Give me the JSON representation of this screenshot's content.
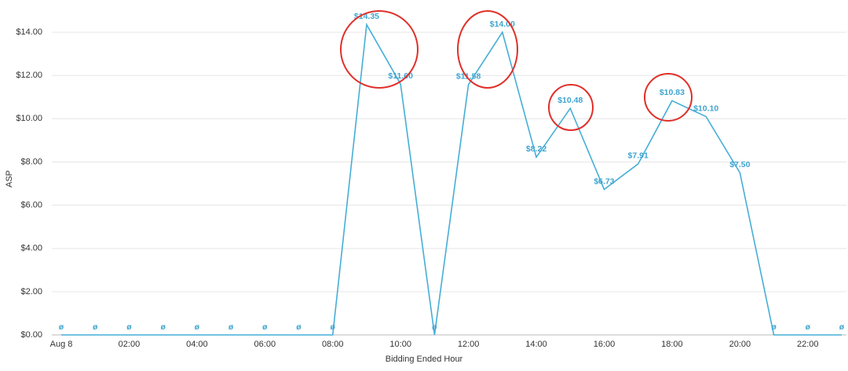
{
  "chart_data": {
    "type": "line",
    "x_label": "Bidding Ended Hour",
    "y_label": "ASP",
    "categories": [
      "Aug 8",
      null,
      "02:00",
      null,
      "04:00",
      null,
      "06:00",
      null,
      "08:00",
      null,
      "10:00",
      null,
      "12:00",
      null,
      "14:00",
      null,
      "16:00",
      null,
      "18:00",
      null,
      "20:00",
      null,
      "22:00",
      null
    ],
    "series": [
      {
        "name": "ASP",
        "color": "#45aed6",
        "values": [
          0,
          0,
          0,
          0,
          0,
          0,
          0,
          0,
          0,
          14.35,
          11.6,
          0,
          11.58,
          14.0,
          8.22,
          10.48,
          6.73,
          7.91,
          10.83,
          10.1,
          7.5,
          0,
          0,
          0
        ],
        "value_labels": [
          "ø",
          "ø",
          "ø",
          "ø",
          "ø",
          "ø",
          "ø",
          "ø",
          "ø",
          "$14.35",
          "$11.60",
          "ø",
          "$11.58",
          "$14.00",
          "$8.22",
          "$10.48",
          "$6.73",
          "$7.91",
          "$10.83",
          "$10.10",
          "$7.50",
          "ø",
          "ø",
          "ø"
        ]
      }
    ],
    "ylim": [
      0,
      15
    ],
    "yticks": [
      {
        "value": 0,
        "label": "$0.00"
      },
      {
        "value": 2,
        "label": "$2.00"
      },
      {
        "value": 4,
        "label": "$4.00"
      },
      {
        "value": 6,
        "label": "$6.00"
      },
      {
        "value": 8,
        "label": "$8.00"
      },
      {
        "value": 10,
        "label": "$10.00"
      },
      {
        "value": 12,
        "label": "$12.00"
      },
      {
        "value": 14,
        "label": "$14.00"
      }
    ],
    "grid": true
  }
}
